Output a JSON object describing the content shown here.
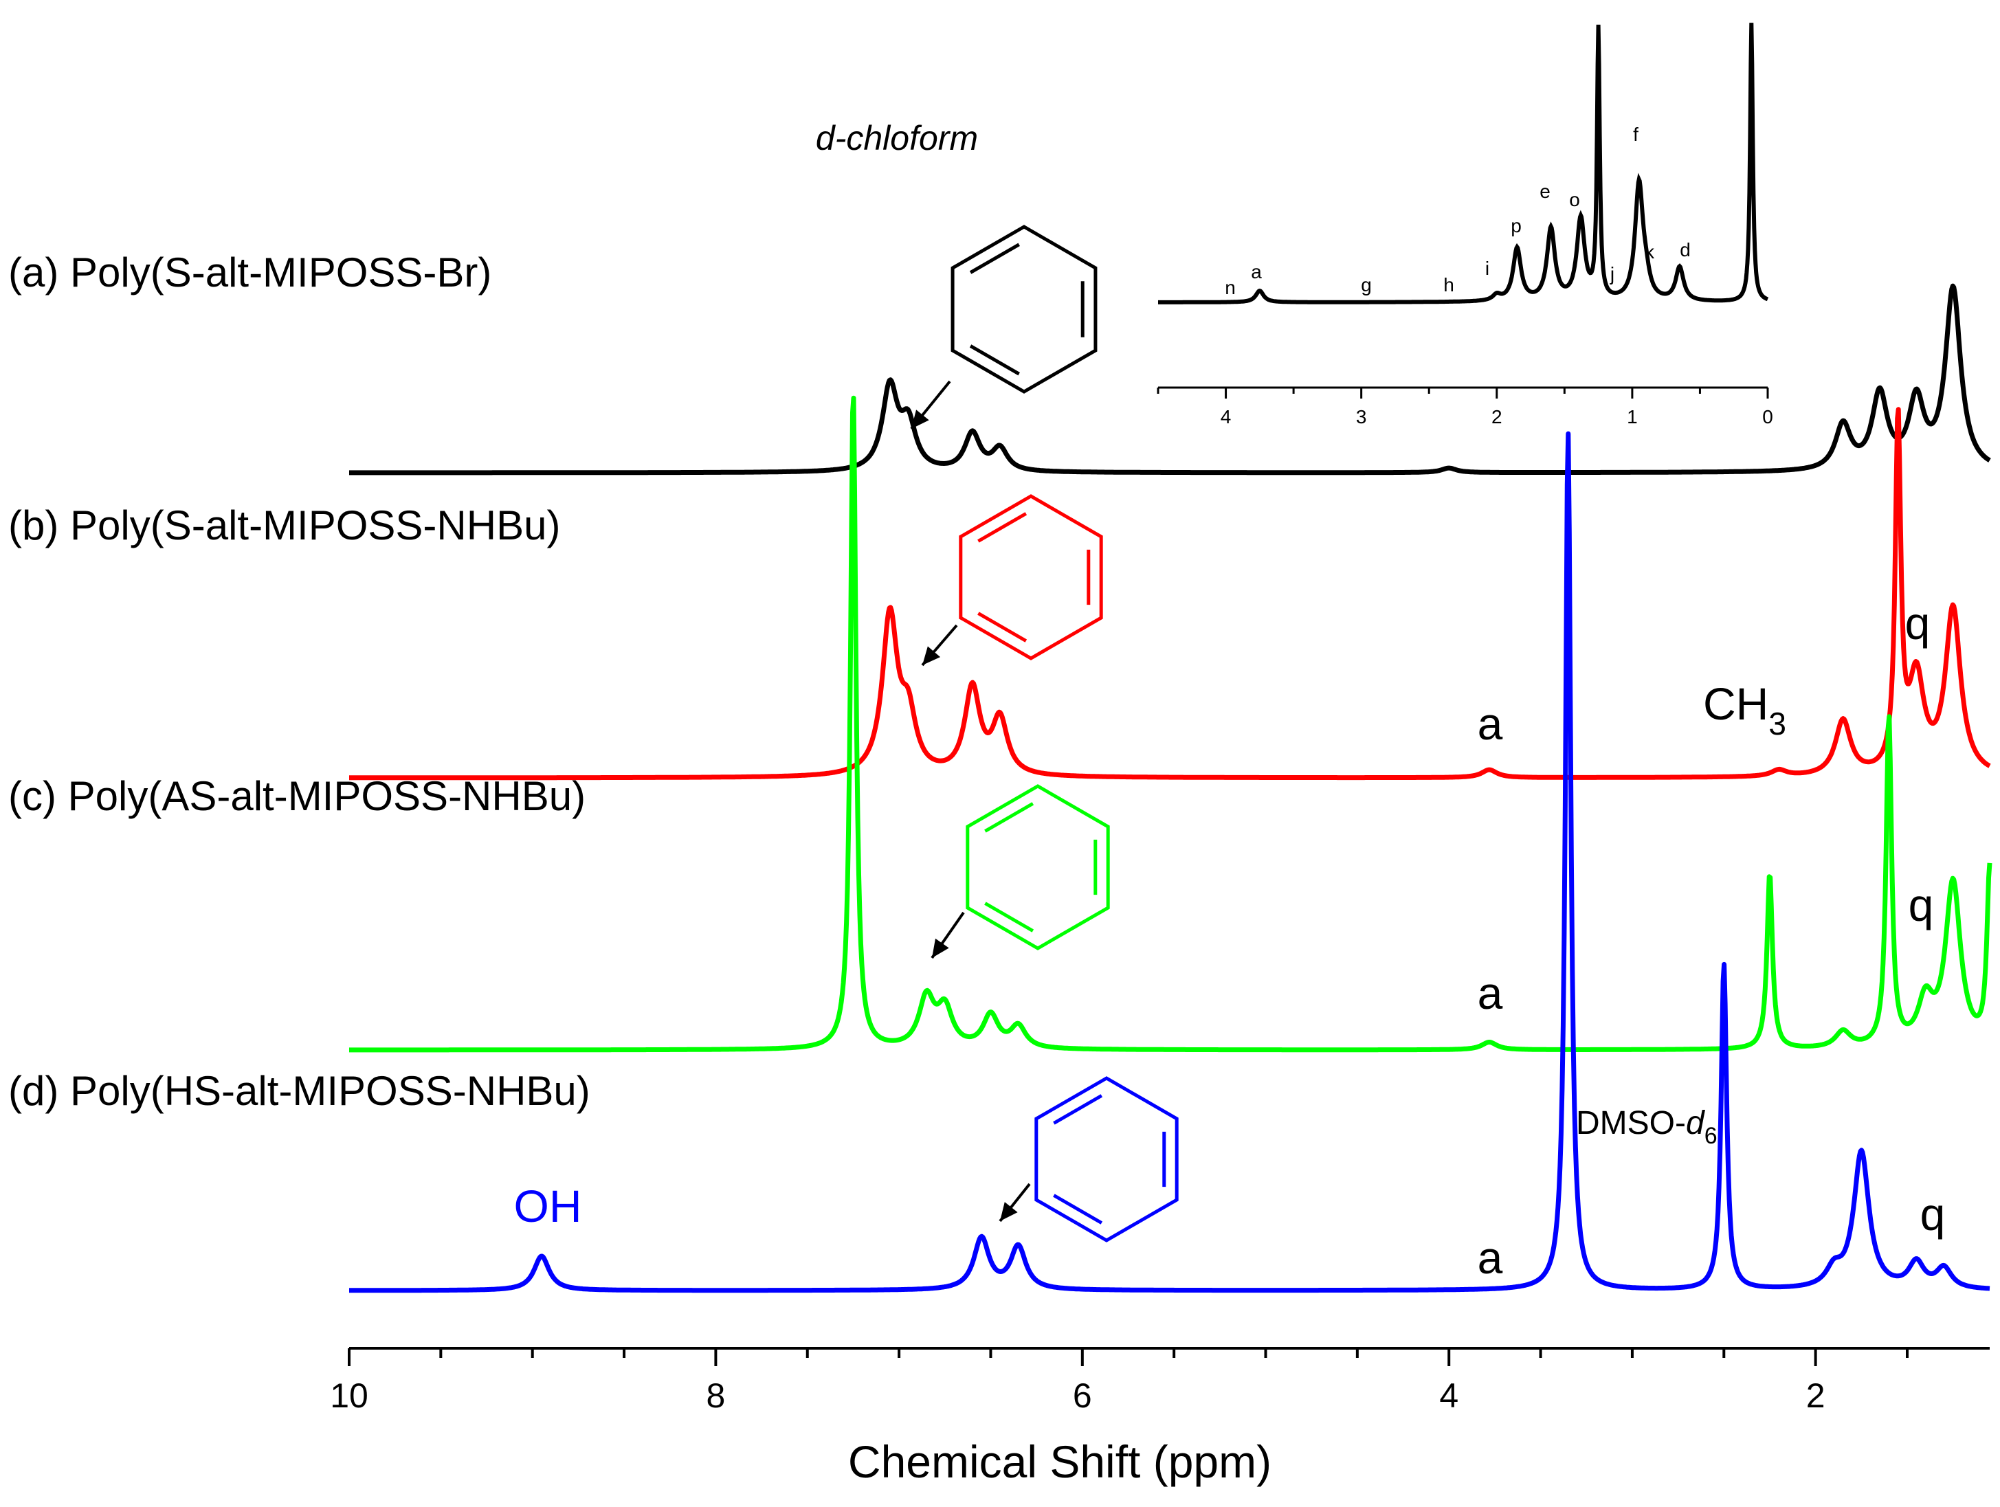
{
  "chart_data": [
    {
      "type": "line",
      "title": "",
      "xlabel": "Chemical Shift (ppm)",
      "ylabel": "",
      "xlim": [
        10,
        0.0
      ],
      "x_reversed": true,
      "x_ticks": [
        10,
        8,
        6,
        4,
        2
      ],
      "grid": false,
      "series": [
        {
          "name": "(a) Poly(S-alt-MIPOSS-Br)",
          "color": "#000000",
          "label_color": "#000000",
          "peaks": [
            [
              7.05,
              0.55
            ],
            [
              6.95,
              0.3
            ],
            [
              6.6,
              0.25
            ],
            [
              6.45,
              0.15
            ],
            [
              4.0,
              0.03
            ],
            [
              1.85,
              0.3
            ],
            [
              1.65,
              0.5
            ],
            [
              1.45,
              0.45
            ],
            [
              1.25,
              1.2
            ]
          ],
          "benzene_color": "#000000"
        },
        {
          "name": "(b) Poly(S-alt-MIPOSS-NHBu)",
          "color": "#ff0000",
          "label_color": "#000000",
          "peaks": [
            [
              7.05,
              1.0
            ],
            [
              6.95,
              0.35
            ],
            [
              6.6,
              0.55
            ],
            [
              6.45,
              0.35
            ],
            [
              3.78,
              0.05
            ],
            [
              2.2,
              0.04
            ],
            [
              1.85,
              0.35
            ],
            [
              1.55,
              2.2
            ],
            [
              1.45,
              0.6
            ],
            [
              1.25,
              1.05
            ]
          ],
          "benzene_color": "#ff0000"
        },
        {
          "name": "(c) Poly(AS-alt-MIPOSS-NHBu)",
          "color": "#00ff00",
          "label_color": "#000000",
          "peaks": [
            [
              7.25,
              6.0
            ],
            [
              6.85,
              0.45
            ],
            [
              6.75,
              0.35
            ],
            [
              6.5,
              0.3
            ],
            [
              6.35,
              0.2
            ],
            [
              3.78,
              0.07
            ],
            [
              2.25,
              1.6
            ],
            [
              1.85,
              0.15
            ],
            [
              1.6,
              3.0
            ],
            [
              1.4,
              0.4
            ],
            [
              1.25,
              1.5
            ],
            [
              1.05,
              1.6
            ]
          ],
          "benzene_color": "#00ff00"
        },
        {
          "name": "(d) Poly(HS-alt-MIPOSS-NHBu)",
          "color": "#0000ff",
          "label_color": "#000000",
          "peaks": [
            [
              8.95,
              0.2
            ],
            [
              6.55,
              0.3
            ],
            [
              6.35,
              0.25
            ],
            [
              3.35,
              5.0
            ],
            [
              2.5,
              1.9
            ],
            [
              1.9,
              0.1
            ],
            [
              1.75,
              0.8
            ],
            [
              1.45,
              0.15
            ],
            [
              1.3,
              0.12
            ]
          ],
          "benzene_color": "#0000ff"
        }
      ],
      "annotations": {
        "solvent_chloroform": "d-chloform",
        "solvent_dmso": "DMSO-",
        "dmso_italic": "d",
        "dmso_sub": "6",
        "oh": "OH",
        "ch3": "CH",
        "ch3_sub": "3",
        "a": "a",
        "q": "q"
      },
      "oh_color": "#0000ff"
    },
    {
      "type": "line",
      "inset": true,
      "title": "",
      "xlabel": "",
      "ylabel": "",
      "xlim": [
        4.5,
        0
      ],
      "x_reversed": true,
      "x_ticks": [
        4,
        3,
        2,
        1,
        0
      ],
      "series": [
        {
          "name": "",
          "color": "#000000",
          "peaks": [
            [
              3.75,
              0.12
            ],
            [
              2.0,
              0.06
            ],
            [
              1.85,
              0.55
            ],
            [
              1.6,
              0.75
            ],
            [
              1.38,
              0.85
            ],
            [
              1.25,
              2.8
            ],
            [
              0.95,
              1.2
            ],
            [
              0.9,
              0.18
            ],
            [
              0.65,
              0.35
            ],
            [
              0.12,
              2.9
            ]
          ]
        }
      ],
      "peak_labels": [
        "n",
        "a",
        "g",
        "h",
        "i",
        "p",
        "e",
        "o",
        "j",
        "f",
        "k",
        "d"
      ]
    }
  ]
}
